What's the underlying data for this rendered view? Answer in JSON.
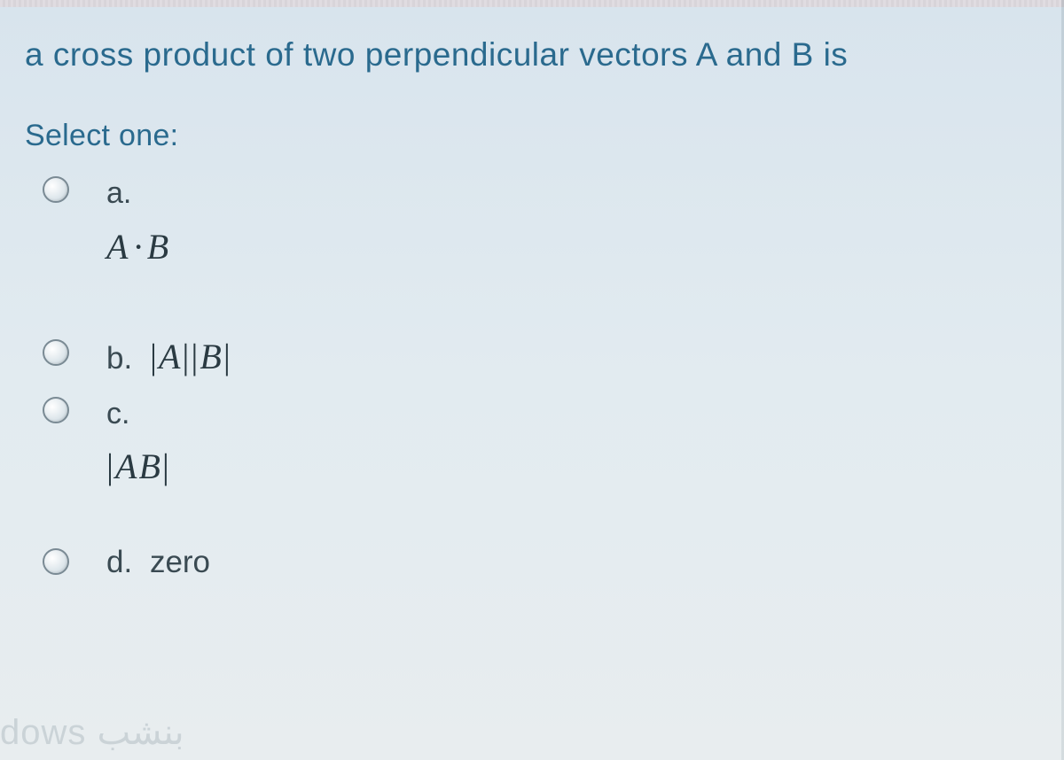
{
  "question": {
    "text": "a cross product of two perpendicular vectors A and B is",
    "select_label": "Select one:"
  },
  "options": {
    "a": {
      "letter": "a.",
      "math_A": "A",
      "math_dot": "·",
      "math_B": "B"
    },
    "b": {
      "letter": "b.",
      "math_open1": "|",
      "math_A": "A",
      "math_close1": "||",
      "math_B": "B",
      "math_close2": "|"
    },
    "c": {
      "letter": "c.",
      "math_open": "|",
      "math_AB": "AB",
      "math_close": "|"
    },
    "d": {
      "letter": "d.",
      "text": "zero"
    }
  },
  "watermark": "dows بنشب",
  "colors": {
    "question_text": "#2a6a8e",
    "option_text": "#3a4a52",
    "math_text": "#2a3a42",
    "radio_border": "#7a8a94",
    "bg_gradient_top": "#d8e4ed",
    "bg_gradient_bottom": "#e8edef"
  }
}
